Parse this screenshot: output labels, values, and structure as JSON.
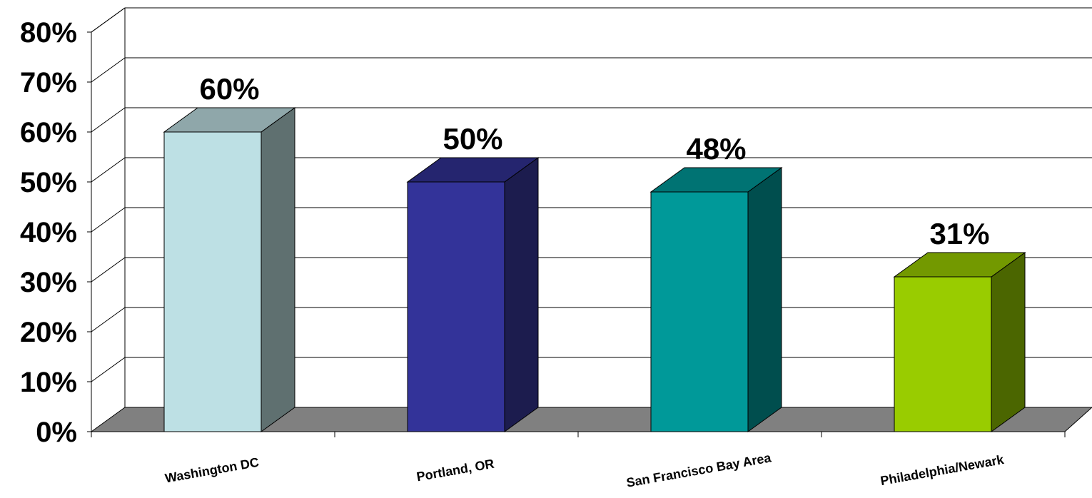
{
  "chart_data": {
    "type": "bar",
    "style": "3d-column",
    "title": "",
    "xlabel": "",
    "ylabel": "",
    "categories": [
      "Washington DC",
      "Portland, OR",
      "San Francisco Bay Area",
      "Philadelphia/Newark"
    ],
    "values": [
      60,
      50,
      48,
      31
    ],
    "data_labels": [
      "60%",
      "50%",
      "48%",
      "31%"
    ],
    "ylim": [
      0,
      80
    ],
    "yticks": [
      0,
      10,
      20,
      30,
      40,
      50,
      60,
      70,
      80
    ],
    "ytick_labels": [
      "0%",
      "10%",
      "20%",
      "30%",
      "40%",
      "50%",
      "60%",
      "70%",
      "80%"
    ],
    "grid": true,
    "legend": "none",
    "colors": {
      "front": [
        "#BDE0E4",
        "#333399",
        "#009999",
        "#99CC00"
      ],
      "side": [
        "#5F7070",
        "#1C1C4E",
        "#004E4E",
        "#4B6600"
      ],
      "top": [
        "#8FA7AA",
        "#25256F",
        "#007373",
        "#739900"
      ],
      "floor": "#808080"
    }
  }
}
